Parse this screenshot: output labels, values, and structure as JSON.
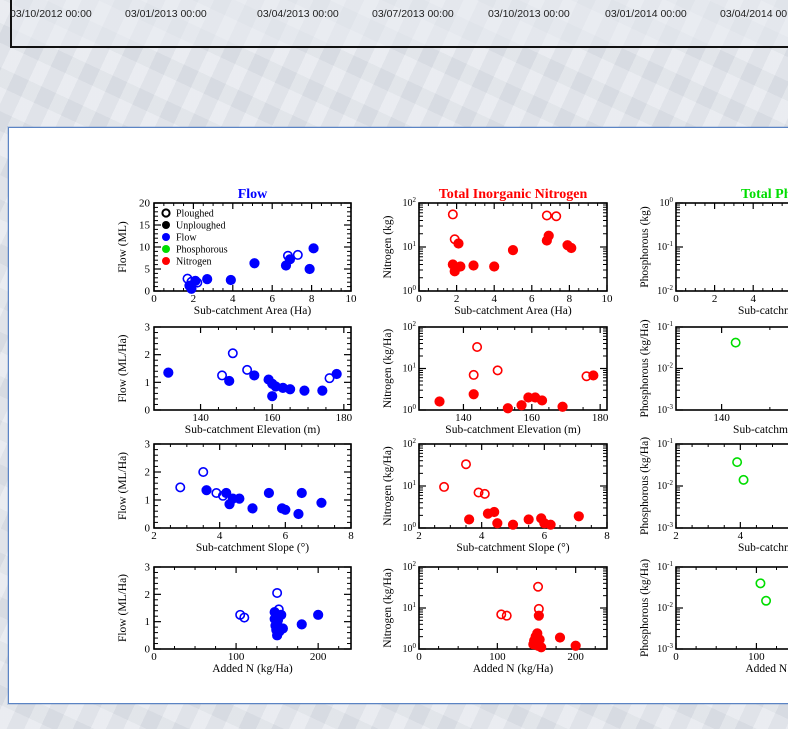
{
  "date_axis": {
    "labels": [
      "03/10/2012 00:00",
      "03/01/2013 00:00",
      "03/04/2013 00:00",
      "03/07/2013 00:00",
      "03/10/2013 00:00",
      "03/01/2014 00:00",
      "03/04/2014 00:00"
    ]
  },
  "colors": {
    "flow": "#0000ff",
    "nitrogen": "#ff0000",
    "phosphorous": "#00dd00",
    "card_border": "#5b84c4"
  },
  "legend": [
    {
      "label": "Ploughed",
      "marker": "open",
      "color": "#000000"
    },
    {
      "label": "Unploughed",
      "marker": "filled",
      "color": "#000000"
    },
    {
      "label": "Flow",
      "marker": "filled",
      "color": "#0000ff"
    },
    {
      "label": "Phosphorous",
      "marker": "filled",
      "color": "#00dd00"
    },
    {
      "label": "Nitrogen",
      "marker": "filled",
      "color": "#ff0000"
    }
  ],
  "chart_data": [
    {
      "id": "flow-area",
      "type": "scatter",
      "title": "Flow",
      "title_color": "#0000ff",
      "color": "#0000ff",
      "xlabel": "Sub-catchment Area (Ha)",
      "ylabel": "Flow (ML)",
      "xscale": "linear",
      "yscale": "linear",
      "xlim": [
        0,
        10
      ],
      "ylim": [
        0,
        20
      ],
      "xticks": [
        0,
        2,
        4,
        6,
        8,
        10
      ],
      "yticks": [
        0,
        5,
        10,
        15,
        20
      ],
      "legend_placement": "top-left",
      "points": [
        {
          "x": 1.7,
          "y": 2.8,
          "o": 1
        },
        {
          "x": 1.9,
          "y": 2.1,
          "o": 1
        },
        {
          "x": 2.2,
          "y": 1.9,
          "o": 1
        },
        {
          "x": 6.8,
          "y": 8,
          "o": 1
        },
        {
          "x": 7.3,
          "y": 8.2,
          "o": 1
        },
        {
          "x": 1.8,
          "y": 1.2,
          "o": 0
        },
        {
          "x": 1.9,
          "y": 0.5,
          "o": 0
        },
        {
          "x": 2.1,
          "y": 2.3,
          "o": 0
        },
        {
          "x": 2.7,
          "y": 2.7,
          "o": 0
        },
        {
          "x": 3.9,
          "y": 2.5,
          "o": 0
        },
        {
          "x": 5.1,
          "y": 6.3,
          "o": 0
        },
        {
          "x": 6.7,
          "y": 5.8,
          "o": 0
        },
        {
          "x": 6.9,
          "y": 7.2,
          "o": 0
        },
        {
          "x": 7.9,
          "y": 5,
          "o": 0
        },
        {
          "x": 8.1,
          "y": 9.7,
          "o": 0
        }
      ]
    },
    {
      "id": "nitrogen-area",
      "type": "scatter",
      "title": "Total Inorganic Nitrogen",
      "title_color": "#ff0000",
      "color": "#ff0000",
      "xlabel": "Sub-catchment Area (Ha)",
      "ylabel": "Nitrogen (kg)",
      "xscale": "linear",
      "yscale": "log",
      "xlim": [
        0,
        10
      ],
      "ylim": [
        1,
        100
      ],
      "xticks": [
        0,
        2,
        4,
        6,
        8,
        10
      ],
      "yticks": [
        1,
        10,
        100
      ],
      "points": [
        {
          "x": 1.8,
          "y": 55,
          "o": 1
        },
        {
          "x": 1.9,
          "y": 15,
          "o": 1
        },
        {
          "x": 6.8,
          "y": 52,
          "o": 1
        },
        {
          "x": 7.3,
          "y": 50,
          "o": 1
        },
        {
          "x": 1.8,
          "y": 4,
          "o": 0
        },
        {
          "x": 1.9,
          "y": 2.8,
          "o": 0
        },
        {
          "x": 2.1,
          "y": 12,
          "o": 0
        },
        {
          "x": 2.2,
          "y": 3.6,
          "o": 0
        },
        {
          "x": 2.9,
          "y": 3.8,
          "o": 0
        },
        {
          "x": 4,
          "y": 3.6,
          "o": 0
        },
        {
          "x": 5,
          "y": 8.5,
          "o": 0
        },
        {
          "x": 6.8,
          "y": 14,
          "o": 0
        },
        {
          "x": 6.9,
          "y": 18,
          "o": 0
        },
        {
          "x": 7.9,
          "y": 11,
          "o": 0
        },
        {
          "x": 8.1,
          "y": 9.5,
          "o": 0
        }
      ]
    },
    {
      "id": "phos-area",
      "type": "scatter",
      "title": "Total Phos",
      "title_color": "#00dd00",
      "color": "#00dd00",
      "xlabel": "Sub-catchment",
      "ylabel": "Phosphorous (kg)",
      "xscale": "linear",
      "yscale": "log",
      "xlim": [
        0,
        10
      ],
      "ylim": [
        0.01,
        1
      ],
      "xticks": [
        0,
        2,
        4
      ],
      "yticks": [
        0.01,
        0.1,
        1
      ],
      "points": []
    },
    {
      "id": "flow-elev",
      "type": "scatter",
      "color": "#0000ff",
      "xlabel": "Sub-catchment Elevation (m)",
      "ylabel": "Flow (ML/Ha)",
      "xscale": "linear",
      "yscale": "linear",
      "xlim": [
        127,
        182
      ],
      "ylim": [
        0,
        3
      ],
      "xticks": [
        140,
        160,
        180
      ],
      "yticks": [
        0,
        1,
        2,
        3
      ],
      "points": [
        {
          "x": 146,
          "y": 1.25,
          "o": 1
        },
        {
          "x": 149,
          "y": 2.05,
          "o": 1
        },
        {
          "x": 153,
          "y": 1.45,
          "o": 1
        },
        {
          "x": 176,
          "y": 1.15,
          "o": 1
        },
        {
          "x": 131,
          "y": 1.35,
          "o": 0
        },
        {
          "x": 148,
          "y": 1.05,
          "o": 0
        },
        {
          "x": 155,
          "y": 1.25,
          "o": 0
        },
        {
          "x": 159,
          "y": 1.1,
          "o": 0
        },
        {
          "x": 160,
          "y": 0.95,
          "o": 0
        },
        {
          "x": 160,
          "y": 0.5,
          "o": 0
        },
        {
          "x": 161,
          "y": 0.85,
          "o": 0
        },
        {
          "x": 163,
          "y": 0.8,
          "o": 0
        },
        {
          "x": 165,
          "y": 0.75,
          "o": 0
        },
        {
          "x": 169,
          "y": 0.7,
          "o": 0
        },
        {
          "x": 174,
          "y": 0.7,
          "o": 0
        },
        {
          "x": 178,
          "y": 1.3,
          "o": 0
        }
      ]
    },
    {
      "id": "nitrogen-elev",
      "type": "scatter",
      "color": "#ff0000",
      "xlabel": "Sub-catchment Elevation (m)",
      "ylabel": "Nitrogen (kg/Ha)",
      "xscale": "linear",
      "yscale": "log",
      "xlim": [
        127,
        182
      ],
      "ylim": [
        1,
        100
      ],
      "xticks": [
        140,
        160,
        180
      ],
      "yticks": [
        1,
        10,
        100
      ],
      "points": [
        {
          "x": 144,
          "y": 33,
          "o": 1
        },
        {
          "x": 143,
          "y": 7,
          "o": 1
        },
        {
          "x": 150,
          "y": 9,
          "o": 1
        },
        {
          "x": 176,
          "y": 6.5,
          "o": 1
        },
        {
          "x": 133,
          "y": 1.6,
          "o": 0
        },
        {
          "x": 143,
          "y": 2.4,
          "o": 0
        },
        {
          "x": 153,
          "y": 1.1,
          "o": 0
        },
        {
          "x": 157,
          "y": 1.3,
          "o": 0
        },
        {
          "x": 159,
          "y": 2,
          "o": 0
        },
        {
          "x": 161,
          "y": 2,
          "o": 0
        },
        {
          "x": 163,
          "y": 1.7,
          "o": 0
        },
        {
          "x": 169,
          "y": 1.2,
          "o": 0
        },
        {
          "x": 178,
          "y": 6.8,
          "o": 0
        }
      ]
    },
    {
      "id": "phos-elev",
      "type": "scatter",
      "color": "#00dd00",
      "xlabel": "Sub-catchment E",
      "ylabel": "Phosphorous (kg/Ha)",
      "xscale": "linear",
      "yscale": "log",
      "xlim": [
        127,
        182
      ],
      "ylim": [
        0.001,
        0.1
      ],
      "xticks": [
        140
      ],
      "yticks": [
        0.001,
        0.01,
        0.1
      ],
      "points": [
        {
          "x": 144,
          "y": 0.042,
          "o": 1
        }
      ]
    },
    {
      "id": "flow-slope",
      "type": "scatter",
      "color": "#0000ff",
      "xlabel": "Sub-catchment Slope (°)",
      "ylabel": "Flow (ML/Ha)",
      "xscale": "linear",
      "yscale": "linear",
      "xlim": [
        2,
        8
      ],
      "ylim": [
        0,
        3
      ],
      "xticks": [
        2,
        4,
        6,
        8
      ],
      "yticks": [
        0,
        1,
        2,
        3
      ],
      "points": [
        {
          "x": 2.8,
          "y": 1.45,
          "o": 1
        },
        {
          "x": 3.5,
          "y": 2,
          "o": 1
        },
        {
          "x": 3.9,
          "y": 1.25,
          "o": 1
        },
        {
          "x": 4.1,
          "y": 1.15,
          "o": 1
        },
        {
          "x": 3.6,
          "y": 1.35,
          "o": 0
        },
        {
          "x": 4.2,
          "y": 1.25,
          "o": 0
        },
        {
          "x": 4.3,
          "y": 0.85,
          "o": 0
        },
        {
          "x": 4.4,
          "y": 1.05,
          "o": 0
        },
        {
          "x": 4.6,
          "y": 1.05,
          "o": 0
        },
        {
          "x": 5,
          "y": 0.7,
          "o": 0
        },
        {
          "x": 5.5,
          "y": 1.25,
          "o": 0
        },
        {
          "x": 5.9,
          "y": 0.7,
          "o": 0
        },
        {
          "x": 6,
          "y": 0.65,
          "o": 0
        },
        {
          "x": 6.4,
          "y": 0.5,
          "o": 0
        },
        {
          "x": 6.5,
          "y": 1.25,
          "o": 0
        },
        {
          "x": 7.1,
          "y": 0.9,
          "o": 0
        }
      ]
    },
    {
      "id": "nitrogen-slope",
      "type": "scatter",
      "color": "#ff0000",
      "xlabel": "Sub-catchment Slope (°)",
      "ylabel": "Nitrogen (kg/Ha)",
      "xscale": "linear",
      "yscale": "log",
      "xlim": [
        2,
        8
      ],
      "ylim": [
        1,
        100
      ],
      "xticks": [
        2,
        4,
        6,
        8
      ],
      "yticks": [
        1,
        10,
        100
      ],
      "points": [
        {
          "x": 2.8,
          "y": 9.5,
          "o": 1
        },
        {
          "x": 3.5,
          "y": 33,
          "o": 1
        },
        {
          "x": 3.9,
          "y": 7,
          "o": 1
        },
        {
          "x": 4.1,
          "y": 6.5,
          "o": 1
        },
        {
          "x": 3.6,
          "y": 1.6,
          "o": 0
        },
        {
          "x": 4.2,
          "y": 2.2,
          "o": 0
        },
        {
          "x": 4.4,
          "y": 2.4,
          "o": 0
        },
        {
          "x": 4.5,
          "y": 1.3,
          "o": 0
        },
        {
          "x": 5,
          "y": 1.2,
          "o": 0
        },
        {
          "x": 5.5,
          "y": 1.6,
          "o": 0
        },
        {
          "x": 5.9,
          "y": 1.7,
          "o": 0
        },
        {
          "x": 6,
          "y": 1.3,
          "o": 0
        },
        {
          "x": 6.2,
          "y": 1.2,
          "o": 0
        },
        {
          "x": 7.1,
          "y": 1.9,
          "o": 0
        }
      ]
    },
    {
      "id": "phos-slope",
      "type": "scatter",
      "color": "#00dd00",
      "xlabel": "Sub-catchment",
      "ylabel": "Phosphorous (kg/Ha)",
      "xscale": "linear",
      "yscale": "log",
      "xlim": [
        2,
        8
      ],
      "ylim": [
        0.001,
        0.1
      ],
      "xticks": [
        2,
        4
      ],
      "yticks": [
        0.001,
        0.01,
        0.1
      ],
      "points": [
        {
          "x": 3.9,
          "y": 0.037,
          "o": 1
        },
        {
          "x": 4.1,
          "y": 0.014,
          "o": 1
        }
      ]
    },
    {
      "id": "flow-addedn",
      "type": "scatter",
      "color": "#0000ff",
      "xlabel": "Added N (kg/Ha)",
      "ylabel": "Flow (ML/Ha)",
      "xscale": "linear",
      "yscale": "linear",
      "xlim": [
        0,
        240
      ],
      "ylim": [
        0,
        3
      ],
      "xticks": [
        0,
        100,
        200
      ],
      "yticks": [
        0,
        1,
        2,
        3
      ],
      "points": [
        {
          "x": 105,
          "y": 1.25,
          "o": 1
        },
        {
          "x": 110,
          "y": 1.15,
          "o": 1
        },
        {
          "x": 150,
          "y": 2.05,
          "o": 1
        },
        {
          "x": 152,
          "y": 1.45,
          "o": 1
        },
        {
          "x": 147,
          "y": 1.35,
          "o": 0
        },
        {
          "x": 147,
          "y": 1.1,
          "o": 0
        },
        {
          "x": 148,
          "y": 0.85,
          "o": 0
        },
        {
          "x": 149,
          "y": 0.7,
          "o": 0
        },
        {
          "x": 150,
          "y": 0.5,
          "o": 0
        },
        {
          "x": 151,
          "y": 1.05,
          "o": 0
        },
        {
          "x": 152,
          "y": 0.8,
          "o": 0
        },
        {
          "x": 153,
          "y": 0.65,
          "o": 0
        },
        {
          "x": 155,
          "y": 1.25,
          "o": 0
        },
        {
          "x": 157,
          "y": 0.75,
          "o": 0
        },
        {
          "x": 180,
          "y": 0.9,
          "o": 0
        },
        {
          "x": 200,
          "y": 1.25,
          "o": 0
        }
      ]
    },
    {
      "id": "nitrogen-addedn",
      "type": "scatter",
      "color": "#ff0000",
      "xlabel": "Added N (kg/Ha)",
      "ylabel": "Nitrogen (kg/Ha)",
      "xscale": "linear",
      "yscale": "log",
      "xlim": [
        0,
        240
      ],
      "ylim": [
        1,
        100
      ],
      "xticks": [
        0,
        100,
        200
      ],
      "yticks": [
        1,
        10,
        100
      ],
      "points": [
        {
          "x": 105,
          "y": 7,
          "o": 1
        },
        {
          "x": 112,
          "y": 6.5,
          "o": 1
        },
        {
          "x": 152,
          "y": 33,
          "o": 1
        },
        {
          "x": 153,
          "y": 9.5,
          "o": 1
        },
        {
          "x": 146,
          "y": 1.3,
          "o": 0
        },
        {
          "x": 147,
          "y": 1.6,
          "o": 0
        },
        {
          "x": 149,
          "y": 2,
          "o": 0
        },
        {
          "x": 150,
          "y": 1.5,
          "o": 0
        },
        {
          "x": 151,
          "y": 2.4,
          "o": 0
        },
        {
          "x": 152,
          "y": 1.2,
          "o": 0
        },
        {
          "x": 153,
          "y": 6.5,
          "o": 0
        },
        {
          "x": 154,
          "y": 1.7,
          "o": 0
        },
        {
          "x": 156,
          "y": 1.1,
          "o": 0
        },
        {
          "x": 180,
          "y": 1.9,
          "o": 0
        },
        {
          "x": 200,
          "y": 1.2,
          "o": 0
        }
      ]
    },
    {
      "id": "phos-addedn",
      "type": "scatter",
      "color": "#00dd00",
      "xlabel": "Added N (k",
      "ylabel": "Phosphorous (kg/Ha)",
      "xscale": "linear",
      "yscale": "log",
      "xlim": [
        0,
        240
      ],
      "ylim": [
        0.001,
        0.1
      ],
      "xticks": [
        0,
        100
      ],
      "yticks": [
        0.001,
        0.01,
        0.1
      ],
      "points": [
        {
          "x": 105,
          "y": 0.04,
          "o": 1
        },
        {
          "x": 112,
          "y": 0.015,
          "o": 1
        }
      ]
    }
  ]
}
